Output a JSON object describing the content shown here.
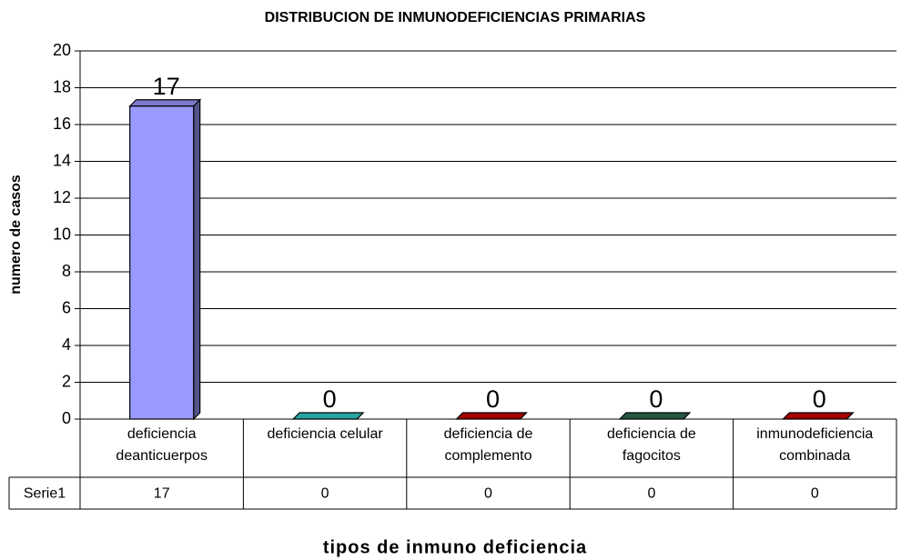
{
  "chart_data": {
    "type": "bar3d",
    "title": "DISTRIBUCION DE INMUNODEFICIENCIAS PRIMARIAS",
    "x_label": "tipos de inmuno deficiencia",
    "y_label": "numero de casos",
    "categories": [
      "deficiencia deanticuerpos",
      "deficiencia celular",
      "deficiencia de complemento",
      "deficiencia de fagocitos",
      "inmunodeficiencia combinada"
    ],
    "series": [
      {
        "name": "Serie1",
        "colors": [
          "#9999ff",
          "#33cccc",
          "#cc0000",
          "#2e6b4f",
          "#cc0000"
        ],
        "values": [
          17,
          0,
          0,
          0,
          0
        ]
      }
    ],
    "ylim": [
      0,
      20
    ],
    "yticks": [
      0,
      2,
      4,
      6,
      8,
      10,
      12,
      14,
      16,
      18,
      20
    ],
    "grid": true,
    "data_table": true
  }
}
